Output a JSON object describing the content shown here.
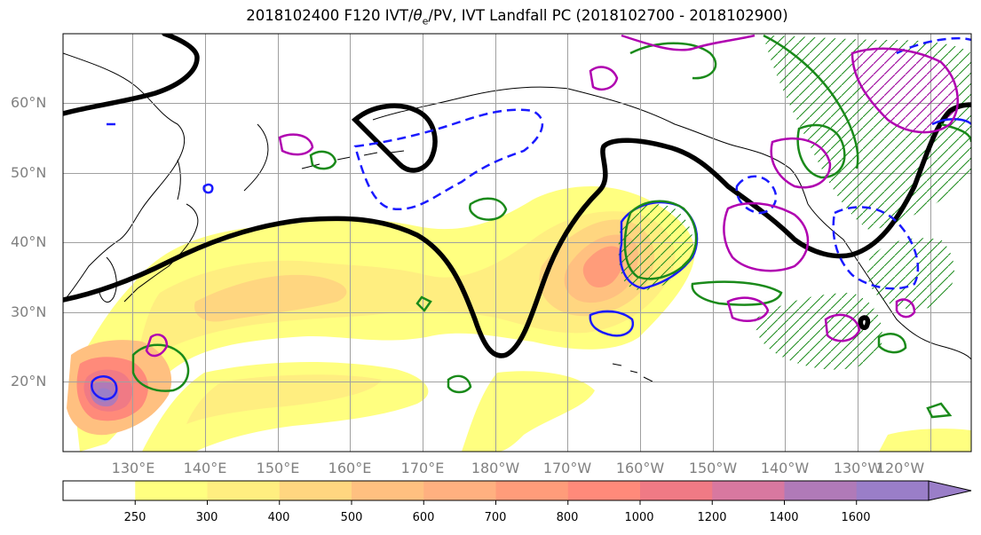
{
  "title": {
    "prefix": "2018102400 F120 IVT/",
    "theta": "θ",
    "theta_sub": "e",
    "suffix": "/PV, IVT Landfall PC (2018102700 - 2018102900)"
  },
  "map": {
    "lat_labels": [
      "60°N",
      "50°N",
      "40°N",
      "30°N",
      "20°N"
    ],
    "lon_labels": [
      "130°E",
      "140°E",
      "150°E",
      "160°E",
      "170°E",
      "180°W",
      "170°W",
      "160°W",
      "150°W",
      "140°W",
      "130°W",
      "120°W"
    ],
    "colors": {
      "height_contour": "#000000",
      "pv_contour_magenta": "#b000b0",
      "theta_contour_green": "#1a8a1a",
      "blue_contour": "#1a1aff"
    }
  },
  "colorbar": {
    "ticks": [
      "250",
      "300",
      "400",
      "500",
      "600",
      "700",
      "800",
      "1000",
      "1200",
      "1400",
      "1600"
    ],
    "colors": [
      "#ffffff",
      "#ffff80",
      "#ffee80",
      "#ffd680",
      "#ffc080",
      "#ffb080",
      "#ff9c7a",
      "#ff8a7a",
      "#f07a85",
      "#d878a0",
      "#b07ab8",
      "#9a7ec8"
    ]
  }
}
